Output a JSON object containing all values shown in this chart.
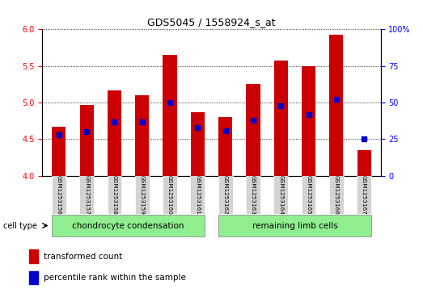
{
  "title": "GDS5045 / 1558924_s_at",
  "samples": [
    "GSM1253156",
    "GSM1253157",
    "GSM1253158",
    "GSM1253159",
    "GSM1253160",
    "GSM1253161",
    "GSM1253162",
    "GSM1253163",
    "GSM1253164",
    "GSM1253165",
    "GSM1253166",
    "GSM1253167"
  ],
  "transformed_count": [
    4.67,
    4.97,
    5.17,
    5.1,
    5.65,
    4.87,
    4.8,
    5.25,
    5.57,
    5.5,
    5.93,
    4.35
  ],
  "percentile_rank": [
    28,
    30,
    37,
    37,
    50,
    33,
    31,
    38,
    48,
    42,
    52,
    25
  ],
  "ylim_left": [
    4.0,
    6.0
  ],
  "ylim_right": [
    0,
    100
  ],
  "yticks_left": [
    4.0,
    4.5,
    5.0,
    5.5,
    6.0
  ],
  "yticks_right": [
    0,
    25,
    50,
    75,
    100
  ],
  "bar_color": "#cc0000",
  "dot_color": "#0000cc",
  "bg_plot": "#ffffff",
  "bg_xtick": "#d3d3d3",
  "group1_label": "chondrocyte condensation",
  "group2_label": "remaining limb cells",
  "group1_indices": [
    0,
    1,
    2,
    3,
    4,
    5
  ],
  "group2_indices": [
    6,
    7,
    8,
    9,
    10,
    11
  ],
  "cell_type_label": "cell type",
  "legend1": "transformed count",
  "legend2": "percentile rank within the sample",
  "group_bg": "#90ee90"
}
